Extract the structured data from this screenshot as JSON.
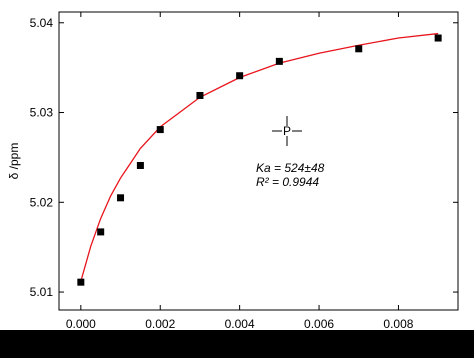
{
  "chart_data": {
    "type": "scatter",
    "ylabel": "δ /ppm",
    "annotations": [
      "Ka = 524±48",
      "R² = 0.9944"
    ],
    "x": [
      0,
      0.0005,
      0.001,
      0.0015,
      0.002,
      0.003,
      0.004,
      0.005,
      0.007,
      0.009
    ],
    "values": [
      5.0111,
      5.0167,
      5.0205,
      5.0241,
      5.0281,
      5.0319,
      5.0341,
      5.0357,
      5.0371,
      5.0383
    ],
    "color": "#000000",
    "fit": {
      "color": "#e8141c",
      "x": [
        0,
        0.00025,
        0.0005,
        0.00075,
        0.001,
        0.0015,
        0.002,
        0.003,
        0.004,
        0.005,
        0.006,
        0.007,
        0.008,
        0.009
      ],
      "values": [
        5.0112,
        5.0151,
        5.0182,
        5.0207,
        5.0227,
        5.026,
        5.0284,
        5.0317,
        5.0339,
        5.0355,
        5.0366,
        5.0375,
        5.0383,
        5.0388
      ]
    },
    "xlim": [
      -0.00055,
      0.0095
    ],
    "ylim": [
      5.008,
      5.0412
    ],
    "xticks": [
      {
        "value": 0,
        "label": "0.000"
      },
      {
        "value": 0.002,
        "label": "0.002"
      },
      {
        "value": 0.004,
        "label": "0.004"
      },
      {
        "value": 0.006,
        "label": "0.006"
      },
      {
        "value": 0.008,
        "label": "0.008"
      }
    ],
    "yticks": [
      5.01,
      5.02,
      5.03,
      5.04
    ]
  }
}
